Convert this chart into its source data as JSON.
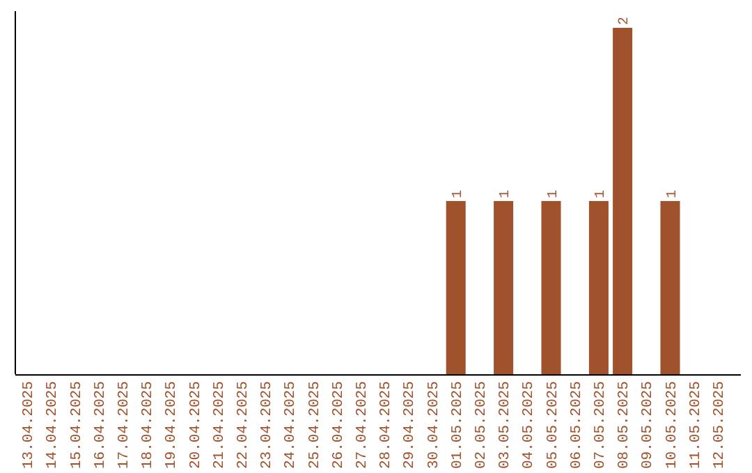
{
  "chart_data": {
    "type": "bar",
    "categories": [
      "13.04.2025",
      "14.04.2025",
      "15.04.2025",
      "16.04.2025",
      "17.04.2025",
      "18.04.2025",
      "19.04.2025",
      "20.04.2025",
      "21.04.2025",
      "22.04.2025",
      "23.04.2025",
      "24.04.2025",
      "25.04.2025",
      "26.04.2025",
      "27.04.2025",
      "28.04.2025",
      "29.04.2025",
      "30.04.2025",
      "01.05.2025",
      "02.05.2025",
      "03.05.2025",
      "04.05.2025",
      "05.05.2025",
      "06.05.2025",
      "07.05.2025",
      "08.05.2025",
      "09.05.2025",
      "10.05.2025",
      "11.05.2025",
      "12.05.2025"
    ],
    "values": [
      null,
      null,
      null,
      null,
      null,
      null,
      null,
      null,
      null,
      null,
      null,
      null,
      null,
      null,
      null,
      null,
      null,
      null,
      1,
      null,
      1,
      null,
      1,
      null,
      1,
      2,
      null,
      1,
      null,
      null
    ],
    "data_labels": true,
    "color": "#a0522d"
  }
}
